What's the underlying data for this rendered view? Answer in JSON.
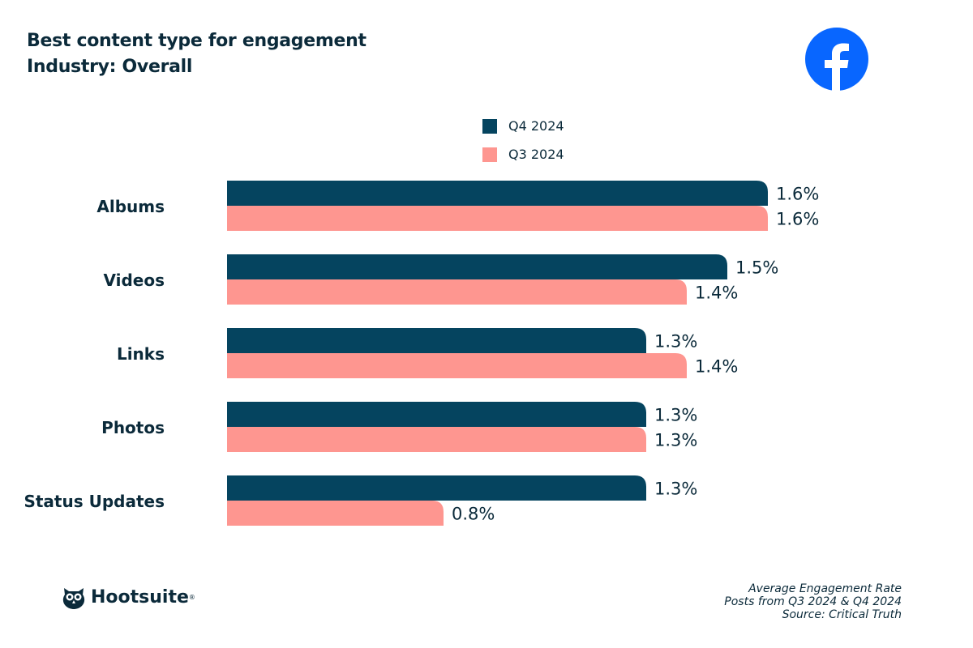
{
  "header": {
    "title": "Best content type for engagement",
    "subtitle": "Industry: Overall"
  },
  "brand_icon": "facebook-logo",
  "colors": {
    "q4": "#05445f",
    "q3": "#fe9690",
    "text": "#0b2a3a",
    "facebook": "#0866ff"
  },
  "chart_data": {
    "type": "bar",
    "orientation": "horizontal",
    "categories": [
      "Albums",
      "Videos",
      "Links",
      "Photos",
      "Status Updates"
    ],
    "series": [
      {
        "name": "Q4 2024",
        "values": [
          1.6,
          1.5,
          1.3,
          1.3,
          1.3
        ],
        "labels": [
          "1.6%",
          "1.5%",
          "1.3%",
          "1.3%",
          "1.3%"
        ]
      },
      {
        "name": "Q3 2024",
        "values": [
          1.6,
          1.4,
          1.4,
          1.3,
          0.8
        ],
        "labels": [
          "1.6%",
          "1.4%",
          "1.4%",
          "1.3%",
          "0.8%"
        ]
      }
    ],
    "legend": "top-center",
    "grid": false
  },
  "footer": {
    "logo": "Hootsuite",
    "lines": [
      "Average Engagement Rate",
      "Posts from Q3 2024 & Q4 2024",
      "Source: Critical Truth"
    ]
  }
}
